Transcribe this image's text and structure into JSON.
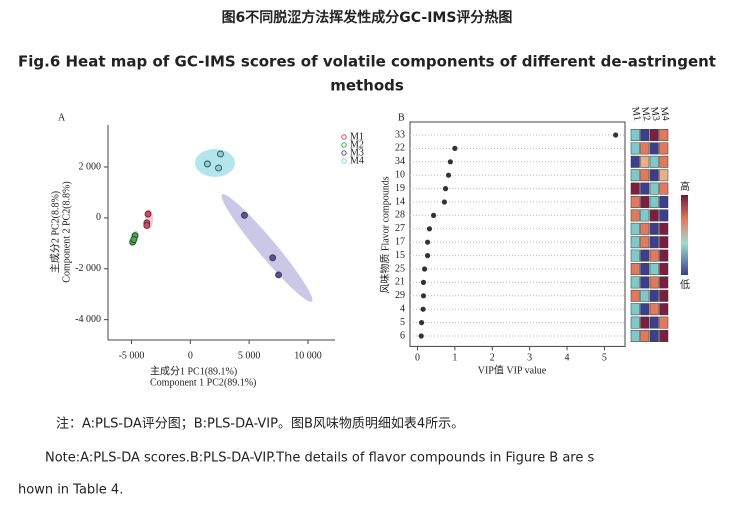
{
  "title_cn": "图6不同脱涩方法挥发性成分GC-IMS评分热图",
  "title_en": [
    "Fig.6 Heat map of GC-IMS scores of volatile components of different de-astringent",
    "methods"
  ],
  "note_cn": "注：A:PLS-DA评分图；B:PLS-DA-VIP。图B风味物质明细如表4所示。",
  "note_en": [
    "Note:A:PLS-DA scores.B:PLS-DA-VIP.The details of flavor compounds in Figure B are s",
    "hown in Table 4."
  ],
  "chart_data": [
    {
      "type": "scatter",
      "panel": "A",
      "x_label": [
        "主成分1 PC1(89.1%)",
        "Component 1 PC2(89.1%)"
      ],
      "y_label": [
        "主成分2 PC2(8.8%)",
        "Component 2 PC2(8.8%)"
      ],
      "xlim": [
        -7000,
        12300
      ],
      "ylim": [
        -4800,
        3650
      ],
      "xticks": [
        {
          "value": -5000,
          "label": "-5 000"
        },
        0,
        {
          "value": 5000,
          "label": "5 000"
        },
        {
          "value": 10000,
          "label": "10 000"
        }
      ],
      "yticks": [
        {
          "value": -4000,
          "label": "-4 000"
        },
        {
          "value": -2000,
          "label": "-2 000"
        },
        0,
        {
          "value": 2000,
          "label": "2 000"
        }
      ],
      "series": [
        {
          "name": "M1",
          "color": "#d9455f",
          "x": [
            -3600,
            -3700,
            -3700
          ],
          "values": [
            150,
            -200,
            -300
          ]
        },
        {
          "name": "M2",
          "color": "#3fae49",
          "x": [
            -4700,
            -4900,
            -4800
          ],
          "values": [
            -700,
            -950,
            -850
          ]
        },
        {
          "name": "M3",
          "color": "#5b4f9a",
          "x": [
            4600,
            7000,
            7500
          ],
          "values": [
            100,
            -1570,
            -2240
          ]
        },
        {
          "name": "M4",
          "color": "#7fd3e0",
          "x": [
            1450,
            2560,
            2400
          ],
          "values": [
            2120,
            2510,
            1960
          ]
        }
      ]
    },
    {
      "type": "dot",
      "panel": "B",
      "x_label": "VIP值  VIP value",
      "y_label": "风味物质  Flavor compounds",
      "categories": [
        "33",
        "22",
        "34",
        "10",
        "19",
        "14",
        "28",
        "27",
        "17",
        "15",
        "25",
        "21",
        "29",
        "4",
        "5",
        "6"
      ],
      "values": [
        5.3,
        1.0,
        0.88,
        0.83,
        0.75,
        0.72,
        0.43,
        0.32,
        0.27,
        0.27,
        0.19,
        0.16,
        0.16,
        0.15,
        0.11,
        0.1
      ],
      "xlim": [
        -0.2,
        5.55
      ],
      "xticks": [
        0,
        1,
        2,
        3,
        4,
        5
      ],
      "color": "#333333",
      "heatmap": {
        "columns": [
          "M1",
          "M2",
          "M3",
          "M4"
        ],
        "colors": [
          [
            "#7fc9c9",
            "#3b3f8c",
            "#7a1f3f",
            "#e07a5f"
          ],
          [
            "#7fc9c9",
            "#e07a5f",
            "#3b3f8c",
            "#e07a5f"
          ],
          [
            "#3b3f8c",
            "#e8b08a",
            "#7fc9c9",
            "#e07a5f"
          ],
          [
            "#7fc9c9",
            "#e07a5f",
            "#3b3f8c",
            "#e8b08a"
          ],
          [
            "#7a1f3f",
            "#3b3f8c",
            "#7fc9c9",
            "#e07a5f"
          ],
          [
            "#e07a5f",
            "#7a1f3f",
            "#7fc9c9",
            "#3b3f8c"
          ],
          [
            "#e07a5f",
            "#7fc9c9",
            "#7a1f3f",
            "#3b3f8c"
          ],
          [
            "#7fc9c9",
            "#e07a5f",
            "#3b3f8c",
            "#7a1f3f"
          ],
          [
            "#7fc9c9",
            "#e07a5f",
            "#3b3f8c",
            "#7a1f3f"
          ],
          [
            "#7fc9c9",
            "#3b3f8c",
            "#e07a5f",
            "#7a1f3f"
          ],
          [
            "#e07a5f",
            "#3b3f8c",
            "#7fc9c9",
            "#7a1f3f"
          ],
          [
            "#7fc9c9",
            "#3b3f8c",
            "#e07a5f",
            "#7a1f3f"
          ],
          [
            "#e07a5f",
            "#7fc9c9",
            "#3b3f8c",
            "#7a1f3f"
          ],
          [
            "#7fc9c9",
            "#3b3f8c",
            "#e07a5f",
            "#7a1f3f"
          ],
          [
            "#7fc9c9",
            "#7a1f3f",
            "#3b3f8c",
            "#e07a5f"
          ],
          [
            "#7fc9c9",
            "#e07a5f",
            "#3b3f8c",
            "#7a1f3f"
          ]
        ]
      },
      "colorbar_labels": {
        "high": "高",
        "low": "低"
      }
    }
  ]
}
